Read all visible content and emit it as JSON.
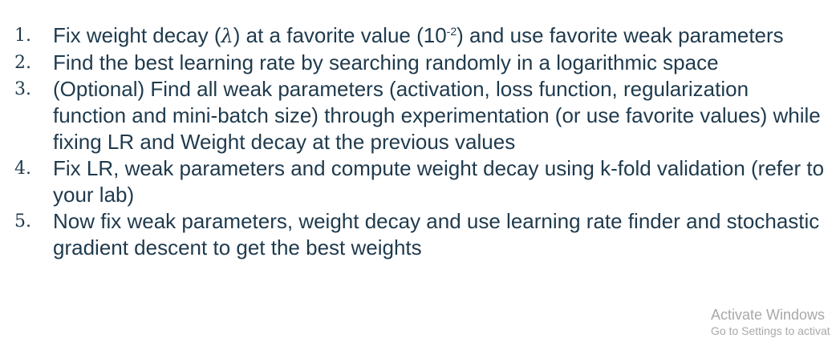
{
  "steps": [
    {
      "number": "1.",
      "text_before": "Fix weight decay (",
      "symbol": "λ",
      "text_middle": ") at a favorite value (10",
      "exponent": "-2",
      "text_after": ") and use favorite weak parameters"
    },
    {
      "number": "2.",
      "text": "Find the best learning rate by searching randomly in a logarithmic space"
    },
    {
      "number": "3.",
      "text": "(Optional) Find all weak parameters (activation, loss function, regularization function and mini-batch size) through experimentation (or use favorite values) while fixing LR and Weight decay at the previous values"
    },
    {
      "number": "4.",
      "text": "Fix LR, weak parameters and compute weight decay using k-fold validation (refer to your lab)"
    },
    {
      "number": "5.",
      "text": "Now fix weak parameters, weight decay and use learning rate finder and stochastic gradient descent to get the best weights"
    }
  ],
  "watermark": {
    "title": "Activate Windows",
    "subtitle": "Go to Settings to activat"
  }
}
